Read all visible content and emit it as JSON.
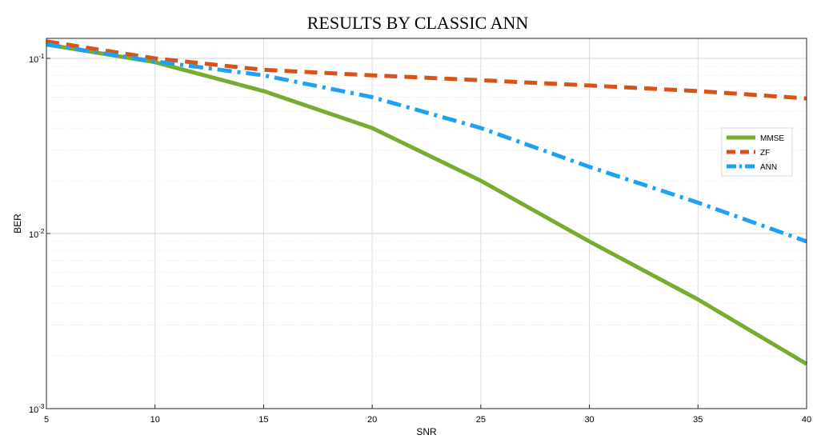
{
  "chart_data": {
    "type": "line",
    "title": "RESULTS BY CLASSIC ANN",
    "xlabel": "SNR",
    "ylabel": "BER",
    "x": [
      5,
      10,
      15,
      20,
      25,
      30,
      35,
      40
    ],
    "xlim": [
      5,
      40
    ],
    "ylim": [
      0.001,
      0.13
    ],
    "yscale": "log",
    "grid": true,
    "legend_position": "right",
    "x_ticks": [
      5,
      10,
      15,
      20,
      25,
      30,
      35,
      40
    ],
    "y_ticks": [
      {
        "value": 0.1,
        "base": "10",
        "exp": "-1"
      },
      {
        "value": 0.01,
        "base": "10",
        "exp": "-2"
      },
      {
        "value": 0.001,
        "base": "10",
        "exp": "-3"
      }
    ],
    "series": [
      {
        "name": "MMSE",
        "color": "#77ac30",
        "style": "solid",
        "values": [
          0.12,
          0.095,
          0.065,
          0.04,
          0.02,
          0.009,
          0.0042,
          0.0018
        ]
      },
      {
        "name": "ZF",
        "color": "#d95319",
        "style": "dashed",
        "values": [
          0.125,
          0.1,
          0.086,
          0.08,
          0.075,
          0.07,
          0.065,
          0.059
        ]
      },
      {
        "name": "ANN",
        "color": "#1da1f2",
        "style": "dashdot",
        "values": [
          0.12,
          0.096,
          0.08,
          0.06,
          0.04,
          0.024,
          0.015,
          0.009
        ]
      }
    ]
  }
}
